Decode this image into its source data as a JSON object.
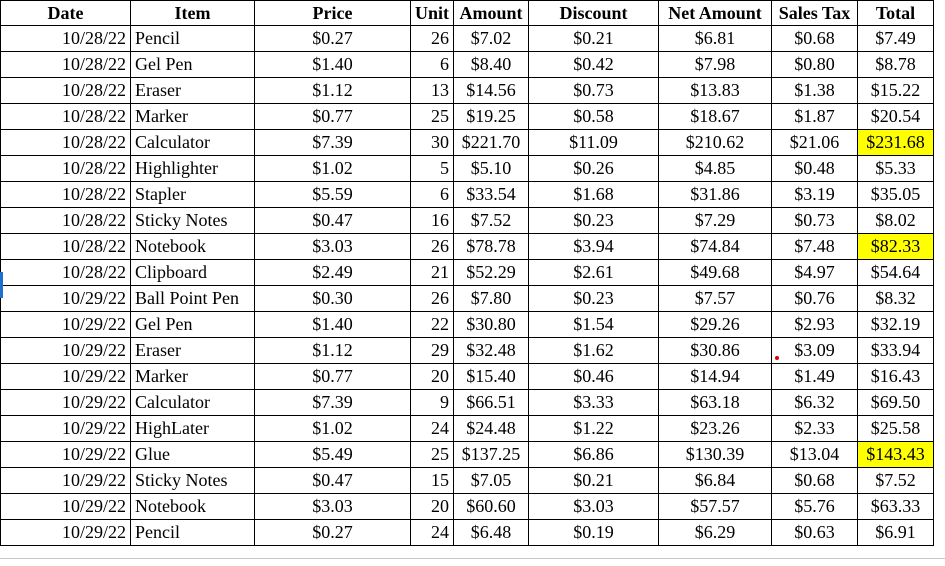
{
  "spreadsheet": {
    "columns": [
      "Date",
      "Item",
      "Price",
      "Unit",
      "Amount",
      "Discount",
      "Net Amount",
      "Sales Tax",
      "Total"
    ],
    "rows": [
      [
        "10/28/22",
        "Pencil",
        "$0.27",
        "26",
        "$7.02",
        "$0.21",
        "$6.81",
        "$0.68",
        "$7.49"
      ],
      [
        "10/28/22",
        "Gel Pen",
        "$1.40",
        "6",
        "$8.40",
        "$0.42",
        "$7.98",
        "$0.80",
        "$8.78"
      ],
      [
        "10/28/22",
        "Eraser",
        "$1.12",
        "13",
        "$14.56",
        "$0.73",
        "$13.83",
        "$1.38",
        "$15.22"
      ],
      [
        "10/28/22",
        "Marker",
        "$0.77",
        "25",
        "$19.25",
        "$0.58",
        "$18.67",
        "$1.87",
        "$20.54"
      ],
      [
        "10/28/22",
        "Calculator",
        "$7.39",
        "30",
        "$221.70",
        "$11.09",
        "$210.62",
        "$21.06",
        "$231.68"
      ],
      [
        "10/28/22",
        "Highlighter",
        "$1.02",
        "5",
        "$5.10",
        "$0.26",
        "$4.85",
        "$0.48",
        "$5.33"
      ],
      [
        "10/28/22",
        "Stapler",
        "$5.59",
        "6",
        "$33.54",
        "$1.68",
        "$31.86",
        "$3.19",
        "$35.05"
      ],
      [
        "10/28/22",
        "Sticky Notes",
        "$0.47",
        "16",
        "$7.52",
        "$0.23",
        "$7.29",
        "$0.73",
        "$8.02"
      ],
      [
        "10/28/22",
        "Notebook",
        "$3.03",
        "26",
        "$78.78",
        "$3.94",
        "$74.84",
        "$7.48",
        "$82.33"
      ],
      [
        "10/28/22",
        "Clipboard",
        "$2.49",
        "21",
        "$52.29",
        "$2.61",
        "$49.68",
        "$4.97",
        "$54.64"
      ],
      [
        "10/29/22",
        "Ball Point Pen",
        "$0.30",
        "26",
        "$7.80",
        "$0.23",
        "$7.57",
        "$0.76",
        "$8.32"
      ],
      [
        "10/29/22",
        "Gel Pen",
        "$1.40",
        "22",
        "$30.80",
        "$1.54",
        "$29.26",
        "$2.93",
        "$32.19"
      ],
      [
        "10/29/22",
        "Eraser",
        "$1.12",
        "29",
        "$32.48",
        "$1.62",
        "$30.86",
        "$3.09",
        "$33.94"
      ],
      [
        "10/29/22",
        "Marker",
        "$0.77",
        "20",
        "$15.40",
        "$0.46",
        "$14.94",
        "$1.49",
        "$16.43"
      ],
      [
        "10/29/22",
        "Calculator",
        "$7.39",
        "9",
        "$66.51",
        "$3.33",
        "$63.18",
        "$6.32",
        "$69.50"
      ],
      [
        "10/29/22",
        "HighLater",
        "$1.02",
        "24",
        "$24.48",
        "$1.22",
        "$23.26",
        "$2.33",
        "$25.58"
      ],
      [
        "10/29/22",
        "Glue",
        "$5.49",
        "25",
        "$137.25",
        "$6.86",
        "$130.39",
        "$13.04",
        "$143.43"
      ],
      [
        "10/29/22",
        "Sticky Notes",
        "$0.47",
        "15",
        "$7.05",
        "$0.21",
        "$6.84",
        "$0.68",
        "$7.52"
      ],
      [
        "10/29/22",
        "Notebook",
        "$3.03",
        "20",
        "$60.60",
        "$3.03",
        "$57.57",
        "$5.76",
        "$63.33"
      ],
      [
        "10/29/22",
        "Pencil",
        "$0.27",
        "24",
        "$6.48",
        "$0.19",
        "$6.29",
        "$0.63",
        "$6.91"
      ]
    ],
    "highlighted_total_rows": [
      4,
      8,
      16
    ],
    "highlight_color": "#ffff00",
    "active_row_marker_color": "#1f6fd1"
  }
}
